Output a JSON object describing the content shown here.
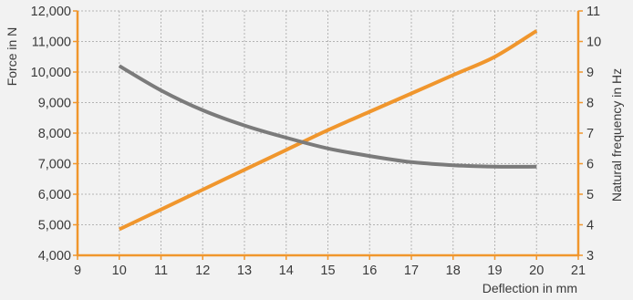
{
  "chart_data": {
    "type": "line",
    "title": "",
    "xlabel": "Deflection in mm",
    "ylabel_left": "Force in N",
    "ylabel_right": "Natural frequency in Hz",
    "x_ticks": [
      9,
      10,
      11,
      12,
      13,
      14,
      15,
      16,
      17,
      18,
      19,
      20,
      21
    ],
    "y_left_ticks": [
      4000,
      5000,
      6000,
      7000,
      8000,
      9000,
      10000,
      11000,
      12000
    ],
    "y_left_tick_labels": [
      "4,000",
      "5,000",
      "6,000",
      "7,000",
      "8,000",
      "9,000",
      "10,000",
      "11,000",
      "12,000"
    ],
    "y_right_ticks": [
      3,
      4,
      5,
      6,
      7,
      8,
      9,
      10,
      11
    ],
    "xlim": [
      9,
      21
    ],
    "ylim_left": [
      4000,
      12000
    ],
    "ylim_right": [
      3,
      11
    ],
    "grid": true,
    "series": [
      {
        "axis": "left",
        "color": "#f0962d",
        "x": [
          10,
          11,
          12,
          13,
          14,
          15,
          16,
          17,
          18,
          19,
          20
        ],
        "values": [
          4850,
          5500,
          6150,
          6800,
          7450,
          8100,
          8700,
          9300,
          9900,
          10500,
          11350
        ]
      },
      {
        "axis": "right",
        "color": "#7b7b7b",
        "x": [
          10,
          11,
          12,
          13,
          14,
          15,
          16,
          17,
          18,
          19,
          20
        ],
        "values": [
          9.2,
          8.4,
          7.75,
          7.25,
          6.85,
          6.5,
          6.25,
          6.05,
          5.95,
          5.9,
          5.9
        ]
      }
    ],
    "colors": {
      "background": "#f2f2f2",
      "axis": "#f0962d",
      "grid": "#b4b4b4",
      "text": "#3a3a3a"
    }
  }
}
